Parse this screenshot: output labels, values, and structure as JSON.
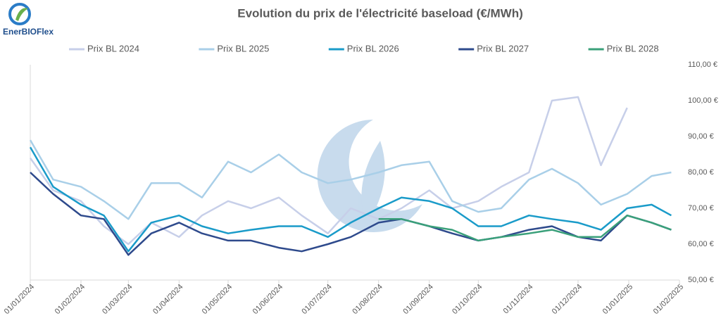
{
  "logo": {
    "text": "EnerBIOFlex"
  },
  "chart_data": {
    "type": "line",
    "title": "Evolution du prix de l'électricité baseload (€/MWh)",
    "legend": "top",
    "grid": false,
    "x": [
      "2024-01-01",
      "2024-01-15",
      "2024-02-01",
      "2024-02-15",
      "2024-03-01",
      "2024-03-15",
      "2024-04-01",
      "2024-04-15",
      "2024-05-01",
      "2024-05-15",
      "2024-06-01",
      "2024-06-15",
      "2024-07-01",
      "2024-07-15",
      "2024-08-01",
      "2024-08-15",
      "2024-09-01",
      "2024-09-15",
      "2024-10-01",
      "2024-10-15",
      "2024-11-01",
      "2024-11-15",
      "2024-12-01",
      "2024-12-15",
      "2024-12-31",
      "2025-01-15",
      "2025-01-27"
    ],
    "xlim": [
      "2024-01-01",
      "2025-02-01"
    ],
    "xticks": [
      {
        "value": "2024-01-01",
        "label": "01/01/2024"
      },
      {
        "value": "2024-02-01",
        "label": "01/02/2024"
      },
      {
        "value": "2024-03-01",
        "label": "01/03/2024"
      },
      {
        "value": "2024-04-01",
        "label": "01/04/2024"
      },
      {
        "value": "2024-05-01",
        "label": "01/05/2024"
      },
      {
        "value": "2024-06-01",
        "label": "01/06/2024"
      },
      {
        "value": "2024-07-01",
        "label": "01/07/2024"
      },
      {
        "value": "2024-08-01",
        "label": "01/08/2024"
      },
      {
        "value": "2024-09-01",
        "label": "01/09/2024"
      },
      {
        "value": "2024-10-01",
        "label": "01/10/2024"
      },
      {
        "value": "2024-11-01",
        "label": "01/11/2024"
      },
      {
        "value": "2024-12-01",
        "label": "01/12/2024"
      },
      {
        "value": "2025-01-01",
        "label": "01/01/2025"
      },
      {
        "value": "2025-02-01",
        "label": "01/02/2025"
      }
    ],
    "ylim": [
      50,
      110
    ],
    "yticks": [
      {
        "value": 50,
        "label": "50,00 €"
      },
      {
        "value": 60,
        "label": "60,00 €"
      },
      {
        "value": 70,
        "label": "70,00 €"
      },
      {
        "value": 80,
        "label": "80,00 €"
      },
      {
        "value": 90,
        "label": "90,00 €"
      },
      {
        "value": 100,
        "label": "100,00 €"
      },
      {
        "value": 110,
        "label": "110,00 €"
      }
    ],
    "series": [
      {
        "name": "Prix BL 2024",
        "color": "#c7cfe9",
        "values": [
          84,
          75,
          72,
          65,
          60,
          66,
          62,
          68,
          72,
          70,
          73,
          68,
          63,
          70,
          67,
          70,
          75,
          70,
          72,
          76,
          80,
          100,
          101,
          82,
          98,
          null,
          null
        ]
      },
      {
        "name": "Prix BL 2025",
        "color": "#a9cfe8",
        "values": [
          89,
          78,
          76,
          72,
          67,
          77,
          77,
          73,
          83,
          80,
          85,
          80,
          77,
          78,
          80,
          82,
          83,
          72,
          69,
          70,
          78,
          81,
          77,
          71,
          74,
          79,
          80
        ]
      },
      {
        "name": "Prix BL 2026",
        "color": "#1a9bc9",
        "values": [
          87,
          76,
          71,
          68,
          58,
          66,
          68,
          65,
          63,
          64,
          65,
          65,
          62,
          66,
          70,
          73,
          72,
          70,
          65,
          65,
          68,
          67,
          66,
          64,
          70,
          71,
          68
        ]
      },
      {
        "name": "Prix BL 2027",
        "color": "#2e4a8c",
        "values": [
          80,
          74,
          68,
          67,
          57,
          63,
          66,
          63,
          61,
          61,
          59,
          58,
          60,
          62,
          66,
          67,
          65,
          63,
          61,
          62,
          64,
          65,
          62,
          61,
          68,
          66,
          64
        ]
      },
      {
        "name": "Prix BL 2028",
        "color": "#3aa07a",
        "values": [
          null,
          null,
          null,
          null,
          null,
          null,
          null,
          null,
          null,
          null,
          null,
          null,
          null,
          null,
          67,
          67,
          65,
          64,
          61,
          62,
          63,
          64,
          62,
          62,
          68,
          66,
          64
        ]
      }
    ]
  }
}
